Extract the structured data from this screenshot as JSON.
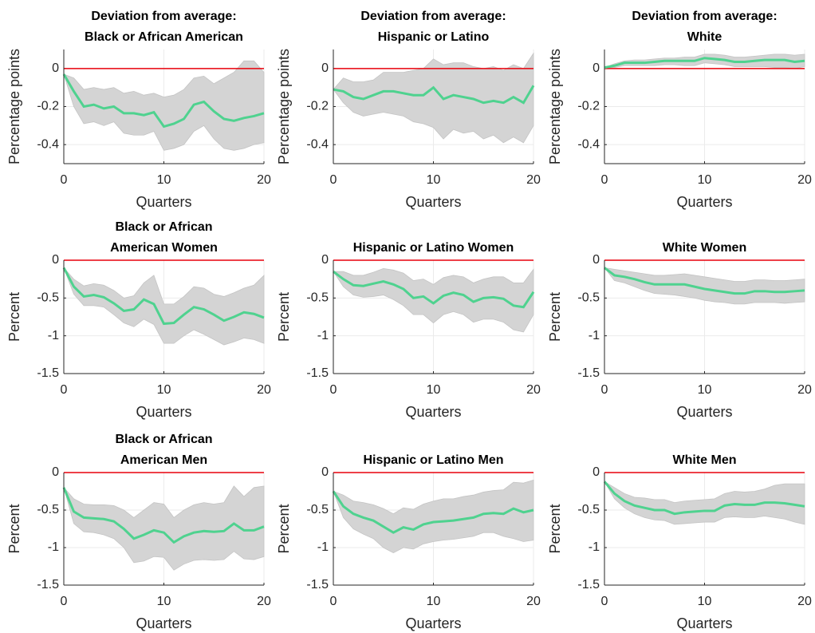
{
  "chart_data": [
    {
      "type": "line",
      "title": [
        "Deviation from average:",
        "Black or African American"
      ],
      "xlabel": "Quarters",
      "ylabel": "Percentage points",
      "x": [
        0,
        1,
        2,
        3,
        4,
        5,
        6,
        7,
        8,
        9,
        10,
        11,
        12,
        13,
        14,
        15,
        16,
        17,
        18,
        19,
        20
      ],
      "values": [
        -0.03,
        -0.12,
        -0.2,
        -0.19,
        -0.21,
        -0.2,
        -0.235,
        -0.235,
        -0.245,
        -0.23,
        -0.305,
        -0.29,
        -0.265,
        -0.19,
        -0.175,
        -0.225,
        -0.265,
        -0.275,
        -0.26,
        -0.25,
        -0.235
      ],
      "lower": [
        -0.03,
        -0.2,
        -0.29,
        -0.28,
        -0.3,
        -0.28,
        -0.34,
        -0.35,
        -0.35,
        -0.33,
        -0.43,
        -0.42,
        -0.4,
        -0.33,
        -0.3,
        -0.37,
        -0.42,
        -0.43,
        -0.42,
        -0.4,
        -0.39
      ],
      "upper": [
        -0.03,
        -0.05,
        -0.11,
        -0.1,
        -0.11,
        -0.1,
        -0.13,
        -0.12,
        -0.14,
        -0.13,
        -0.15,
        -0.14,
        -0.11,
        -0.05,
        -0.04,
        -0.08,
        -0.05,
        -0.02,
        0.04,
        0.04,
        -0.02
      ],
      "color": "#4fd28f",
      "band_color": "#d4d4d4",
      "hline": 0,
      "hline_color": "#e8000b",
      "xlim": [
        0,
        20
      ],
      "xticks": [
        0,
        10,
        20
      ],
      "ylim": [
        -0.5,
        0.1
      ],
      "yticks": [
        -0.4,
        -0.2,
        0
      ],
      "grid": true
    },
    {
      "type": "line",
      "title": [
        "Deviation from average:",
        "Hispanic or Latino"
      ],
      "xlabel": "Quarters",
      "ylabel": "Percentage points",
      "x": [
        0,
        1,
        2,
        3,
        4,
        5,
        6,
        7,
        8,
        9,
        10,
        11,
        12,
        13,
        14,
        15,
        16,
        17,
        18,
        19,
        20
      ],
      "values": [
        -0.11,
        -0.12,
        -0.15,
        -0.16,
        -0.14,
        -0.12,
        -0.12,
        -0.13,
        -0.14,
        -0.14,
        -0.1,
        -0.16,
        -0.14,
        -0.15,
        -0.16,
        -0.18,
        -0.17,
        -0.18,
        -0.15,
        -0.18,
        -0.09
      ],
      "lower": [
        -0.11,
        -0.18,
        -0.23,
        -0.25,
        -0.24,
        -0.23,
        -0.24,
        -0.25,
        -0.28,
        -0.29,
        -0.31,
        -0.37,
        -0.32,
        -0.34,
        -0.33,
        -0.37,
        -0.35,
        -0.39,
        -0.36,
        -0.39,
        -0.3
      ],
      "upper": [
        -0.11,
        -0.05,
        -0.07,
        -0.07,
        -0.06,
        -0.02,
        -0.02,
        -0.02,
        -0.01,
        0,
        0.05,
        0.02,
        0.03,
        0.03,
        0.01,
        0,
        0.01,
        -0.01,
        0.02,
        0,
        0.08
      ],
      "color": "#4fd28f",
      "band_color": "#d4d4d4",
      "hline": 0,
      "hline_color": "#e8000b",
      "xlim": [
        0,
        20
      ],
      "xticks": [
        0,
        10,
        20
      ],
      "ylim": [
        -0.5,
        0.1
      ],
      "yticks": [
        -0.4,
        -0.2,
        0
      ],
      "grid": true
    },
    {
      "type": "line",
      "title": [
        "Deviation from average:",
        "White"
      ],
      "xlabel": "Quarters",
      "ylabel": "Percentage points",
      "x": [
        0,
        1,
        2,
        3,
        4,
        5,
        6,
        7,
        8,
        9,
        10,
        11,
        12,
        13,
        14,
        15,
        16,
        17,
        18,
        19,
        20
      ],
      "values": [
        0.005,
        0.015,
        0.03,
        0.03,
        0.03,
        0.035,
        0.04,
        0.04,
        0.04,
        0.04,
        0.055,
        0.05,
        0.045,
        0.035,
        0.035,
        0.04,
        0.045,
        0.045,
        0.045,
        0.035,
        0.04
      ],
      "lower": [
        0.005,
        0.005,
        0.015,
        0.015,
        0.015,
        0.015,
        0.02,
        0.02,
        0.015,
        0.015,
        0.03,
        0.025,
        0.02,
        0.01,
        0.01,
        0.01,
        0.01,
        0.005,
        0.005,
        0,
        0.01
      ],
      "upper": [
        0.005,
        0.025,
        0.04,
        0.045,
        0.045,
        0.05,
        0.055,
        0.055,
        0.06,
        0.06,
        0.075,
        0.075,
        0.07,
        0.06,
        0.06,
        0.065,
        0.07,
        0.075,
        0.075,
        0.07,
        0.075
      ],
      "color": "#4fd28f",
      "band_color": "#d4d4d4",
      "hline": 0,
      "hline_color": "#e8000b",
      "xlim": [
        0,
        20
      ],
      "xticks": [
        0,
        10,
        20
      ],
      "ylim": [
        -0.5,
        0.1
      ],
      "yticks": [
        -0.4,
        -0.2,
        0
      ],
      "grid": true
    },
    {
      "type": "line",
      "title": [
        "Black or African",
        "American Women"
      ],
      "xlabel": "Quarters",
      "ylabel": "Percent",
      "x": [
        0,
        1,
        2,
        3,
        4,
        5,
        6,
        7,
        8,
        9,
        10,
        11,
        12,
        13,
        14,
        15,
        16,
        17,
        18,
        19,
        20
      ],
      "values": [
        -0.1,
        -0.35,
        -0.48,
        -0.46,
        -0.49,
        -0.57,
        -0.67,
        -0.65,
        -0.52,
        -0.58,
        -0.84,
        -0.83,
        -0.72,
        -0.62,
        -0.65,
        -0.72,
        -0.8,
        -0.75,
        -0.69,
        -0.71,
        -0.76
      ],
      "lower": [
        -0.1,
        -0.45,
        -0.6,
        -0.6,
        -0.62,
        -0.72,
        -0.83,
        -0.88,
        -0.78,
        -0.85,
        -1.1,
        -1.1,
        -1,
        -0.92,
        -0.98,
        -1.05,
        -1.12,
        -1.08,
        -1.03,
        -1.05,
        -1.1
      ],
      "upper": [
        -0.1,
        -0.25,
        -0.34,
        -0.31,
        -0.33,
        -0.4,
        -0.5,
        -0.47,
        -0.3,
        -0.2,
        -0.58,
        -0.58,
        -0.48,
        -0.35,
        -0.37,
        -0.45,
        -0.48,
        -0.43,
        -0.37,
        -0.33,
        -0.2
      ],
      "color": "#4fd28f",
      "band_color": "#d4d4d4",
      "hline": 0,
      "hline_color": "#e8000b",
      "xlim": [
        0,
        20
      ],
      "xticks": [
        0,
        10,
        20
      ],
      "ylim": [
        -1.5,
        0
      ],
      "yticks": [
        -1.5,
        -1,
        -0.5,
        0
      ],
      "grid": true
    },
    {
      "type": "line",
      "title": [
        "Hispanic or Latino Women"
      ],
      "xlabel": "Quarters",
      "ylabel": "Percent",
      "x": [
        0,
        1,
        2,
        3,
        4,
        5,
        6,
        7,
        8,
        9,
        10,
        11,
        12,
        13,
        14,
        15,
        16,
        17,
        18,
        19,
        20
      ],
      "values": [
        -0.15,
        -0.25,
        -0.33,
        -0.34,
        -0.31,
        -0.28,
        -0.32,
        -0.38,
        -0.5,
        -0.48,
        -0.57,
        -0.47,
        -0.43,
        -0.46,
        -0.55,
        -0.5,
        -0.49,
        -0.51,
        -0.6,
        -0.62,
        -0.42
      ],
      "lower": [
        -0.15,
        -0.35,
        -0.46,
        -0.49,
        -0.48,
        -0.46,
        -0.52,
        -0.6,
        -0.72,
        -0.72,
        -0.83,
        -0.72,
        -0.68,
        -0.72,
        -0.82,
        -0.78,
        -0.78,
        -0.82,
        -0.92,
        -0.95,
        -0.72
      ],
      "upper": [
        -0.15,
        -0.15,
        -0.2,
        -0.2,
        -0.16,
        -0.11,
        -0.13,
        -0.17,
        -0.27,
        -0.25,
        -0.32,
        -0.23,
        -0.2,
        -0.22,
        -0.3,
        -0.25,
        -0.22,
        -0.22,
        -0.3,
        -0.3,
        -0.12
      ],
      "color": "#4fd28f",
      "band_color": "#d4d4d4",
      "hline": 0,
      "hline_color": "#e8000b",
      "xlim": [
        0,
        20
      ],
      "xticks": [
        0,
        10,
        20
      ],
      "ylim": [
        -1.5,
        0
      ],
      "yticks": [
        -1.5,
        -1,
        -0.5,
        0
      ],
      "grid": true
    },
    {
      "type": "line",
      "title": [
        "White Women"
      ],
      "xlabel": "Quarters",
      "ylabel": "Percent",
      "x": [
        0,
        1,
        2,
        3,
        4,
        5,
        6,
        7,
        8,
        9,
        10,
        11,
        12,
        13,
        14,
        15,
        16,
        17,
        18,
        19,
        20
      ],
      "values": [
        -0.1,
        -0.2,
        -0.22,
        -0.25,
        -0.29,
        -0.32,
        -0.32,
        -0.32,
        -0.32,
        -0.35,
        -0.38,
        -0.4,
        -0.42,
        -0.44,
        -0.44,
        -0.41,
        -0.41,
        -0.42,
        -0.42,
        -0.41,
        -0.4
      ],
      "lower": [
        -0.1,
        -0.27,
        -0.3,
        -0.35,
        -0.4,
        -0.44,
        -0.45,
        -0.46,
        -0.48,
        -0.5,
        -0.53,
        -0.55,
        -0.56,
        -0.58,
        -0.58,
        -0.56,
        -0.56,
        -0.56,
        -0.57,
        -0.56,
        -0.55
      ],
      "upper": [
        -0.1,
        -0.12,
        -0.14,
        -0.16,
        -0.18,
        -0.2,
        -0.2,
        -0.19,
        -0.18,
        -0.2,
        -0.22,
        -0.24,
        -0.26,
        -0.28,
        -0.28,
        -0.26,
        -0.26,
        -0.27,
        -0.27,
        -0.26,
        -0.25
      ],
      "color": "#4fd28f",
      "band_color": "#d4d4d4",
      "hline": 0,
      "hline_color": "#e8000b",
      "xlim": [
        0,
        20
      ],
      "xticks": [
        0,
        10,
        20
      ],
      "ylim": [
        -1.5,
        0
      ],
      "yticks": [
        -1.5,
        -1,
        -0.5,
        0
      ],
      "grid": true
    },
    {
      "type": "line",
      "title": [
        "Black or African",
        "American Men"
      ],
      "xlabel": "Quarters",
      "ylabel": "Percent",
      "x": [
        0,
        1,
        2,
        3,
        4,
        5,
        6,
        7,
        8,
        9,
        10,
        11,
        12,
        13,
        14,
        15,
        16,
        17,
        18,
        19,
        20
      ],
      "values": [
        -0.2,
        -0.52,
        -0.6,
        -0.61,
        -0.62,
        -0.65,
        -0.75,
        -0.88,
        -0.83,
        -0.77,
        -0.8,
        -0.93,
        -0.85,
        -0.8,
        -0.78,
        -0.79,
        -0.78,
        -0.68,
        -0.77,
        -0.77,
        -0.72
      ],
      "lower": [
        -0.2,
        -0.68,
        -0.79,
        -0.8,
        -0.83,
        -0.88,
        -1,
        -1.2,
        -1.18,
        -1.12,
        -1.13,
        -1.3,
        -1.22,
        -1.17,
        -1.16,
        -1.17,
        -1.16,
        -1.05,
        -1.15,
        -1.16,
        -1.12
      ],
      "upper": [
        -0.2,
        -0.35,
        -0.42,
        -0.43,
        -0.43,
        -0.44,
        -0.5,
        -0.6,
        -0.5,
        -0.4,
        -0.42,
        -0.6,
        -0.5,
        -0.43,
        -0.4,
        -0.42,
        -0.4,
        -0.18,
        -0.32,
        -0.2,
        -0.18
      ],
      "color": "#4fd28f",
      "band_color": "#d4d4d4",
      "hline": 0,
      "hline_color": "#e8000b",
      "xlim": [
        0,
        20
      ],
      "xticks": [
        0,
        10,
        20
      ],
      "ylim": [
        -1.5,
        0
      ],
      "yticks": [
        -1.5,
        -1,
        -0.5,
        0
      ],
      "grid": true
    },
    {
      "type": "line",
      "title": [
        "Hispanic or Latino Men"
      ],
      "xlabel": "Quarters",
      "ylabel": "Percent",
      "x": [
        0,
        1,
        2,
        3,
        4,
        5,
        6,
        7,
        8,
        9,
        10,
        11,
        12,
        13,
        14,
        15,
        16,
        17,
        18,
        19,
        20
      ],
      "values": [
        -0.25,
        -0.45,
        -0.55,
        -0.6,
        -0.64,
        -0.72,
        -0.8,
        -0.73,
        -0.76,
        -0.69,
        -0.66,
        -0.65,
        -0.64,
        -0.62,
        -0.6,
        -0.55,
        -0.54,
        -0.55,
        -0.48,
        -0.53,
        -0.5
      ],
      "lower": [
        -0.25,
        -0.6,
        -0.75,
        -0.82,
        -0.88,
        -1,
        -1.07,
        -1,
        -1.02,
        -0.95,
        -0.92,
        -0.9,
        -0.89,
        -0.87,
        -0.85,
        -0.8,
        -0.8,
        -0.85,
        -0.88,
        -0.92,
        -0.9
      ],
      "upper": [
        -0.25,
        -0.3,
        -0.38,
        -0.4,
        -0.43,
        -0.48,
        -0.55,
        -0.47,
        -0.49,
        -0.42,
        -0.38,
        -0.35,
        -0.35,
        -0.32,
        -0.3,
        -0.26,
        -0.24,
        -0.23,
        -0.13,
        -0.14,
        -0.1
      ],
      "color": "#4fd28f",
      "band_color": "#d4d4d4",
      "hline": 0,
      "hline_color": "#e8000b",
      "xlim": [
        0,
        20
      ],
      "xticks": [
        0,
        10,
        20
      ],
      "ylim": [
        -1.5,
        0
      ],
      "yticks": [
        -1.5,
        -1,
        -0.5,
        0
      ],
      "grid": true
    },
    {
      "type": "line",
      "title": [
        "White Men"
      ],
      "xlabel": "Quarters",
      "ylabel": "Percent",
      "x": [
        0,
        1,
        2,
        3,
        4,
        5,
        6,
        7,
        8,
        9,
        10,
        11,
        12,
        13,
        14,
        15,
        16,
        17,
        18,
        19,
        20
      ],
      "values": [
        -0.12,
        -0.28,
        -0.38,
        -0.44,
        -0.47,
        -0.5,
        -0.5,
        -0.55,
        -0.53,
        -0.52,
        -0.51,
        -0.51,
        -0.44,
        -0.42,
        -0.43,
        -0.43,
        -0.4,
        -0.4,
        -0.41,
        -0.43,
        -0.45
      ],
      "lower": [
        -0.12,
        -0.35,
        -0.47,
        -0.55,
        -0.6,
        -0.63,
        -0.64,
        -0.69,
        -0.68,
        -0.67,
        -0.66,
        -0.66,
        -0.6,
        -0.59,
        -0.6,
        -0.6,
        -0.58,
        -0.6,
        -0.62,
        -0.66,
        -0.69
      ],
      "upper": [
        -0.12,
        -0.2,
        -0.28,
        -0.33,
        -0.34,
        -0.36,
        -0.36,
        -0.4,
        -0.38,
        -0.37,
        -0.36,
        -0.35,
        -0.28,
        -0.25,
        -0.26,
        -0.25,
        -0.22,
        -0.17,
        -0.15,
        -0.15,
        -0.15
      ],
      "color": "#4fd28f",
      "band_color": "#d4d4d4",
      "hline": 0,
      "hline_color": "#e8000b",
      "xlim": [
        0,
        20
      ],
      "xticks": [
        0,
        10,
        20
      ],
      "ylim": [
        -1.5,
        0
      ],
      "yticks": [
        -1.5,
        -1,
        -0.5,
        0
      ],
      "grid": true
    }
  ]
}
